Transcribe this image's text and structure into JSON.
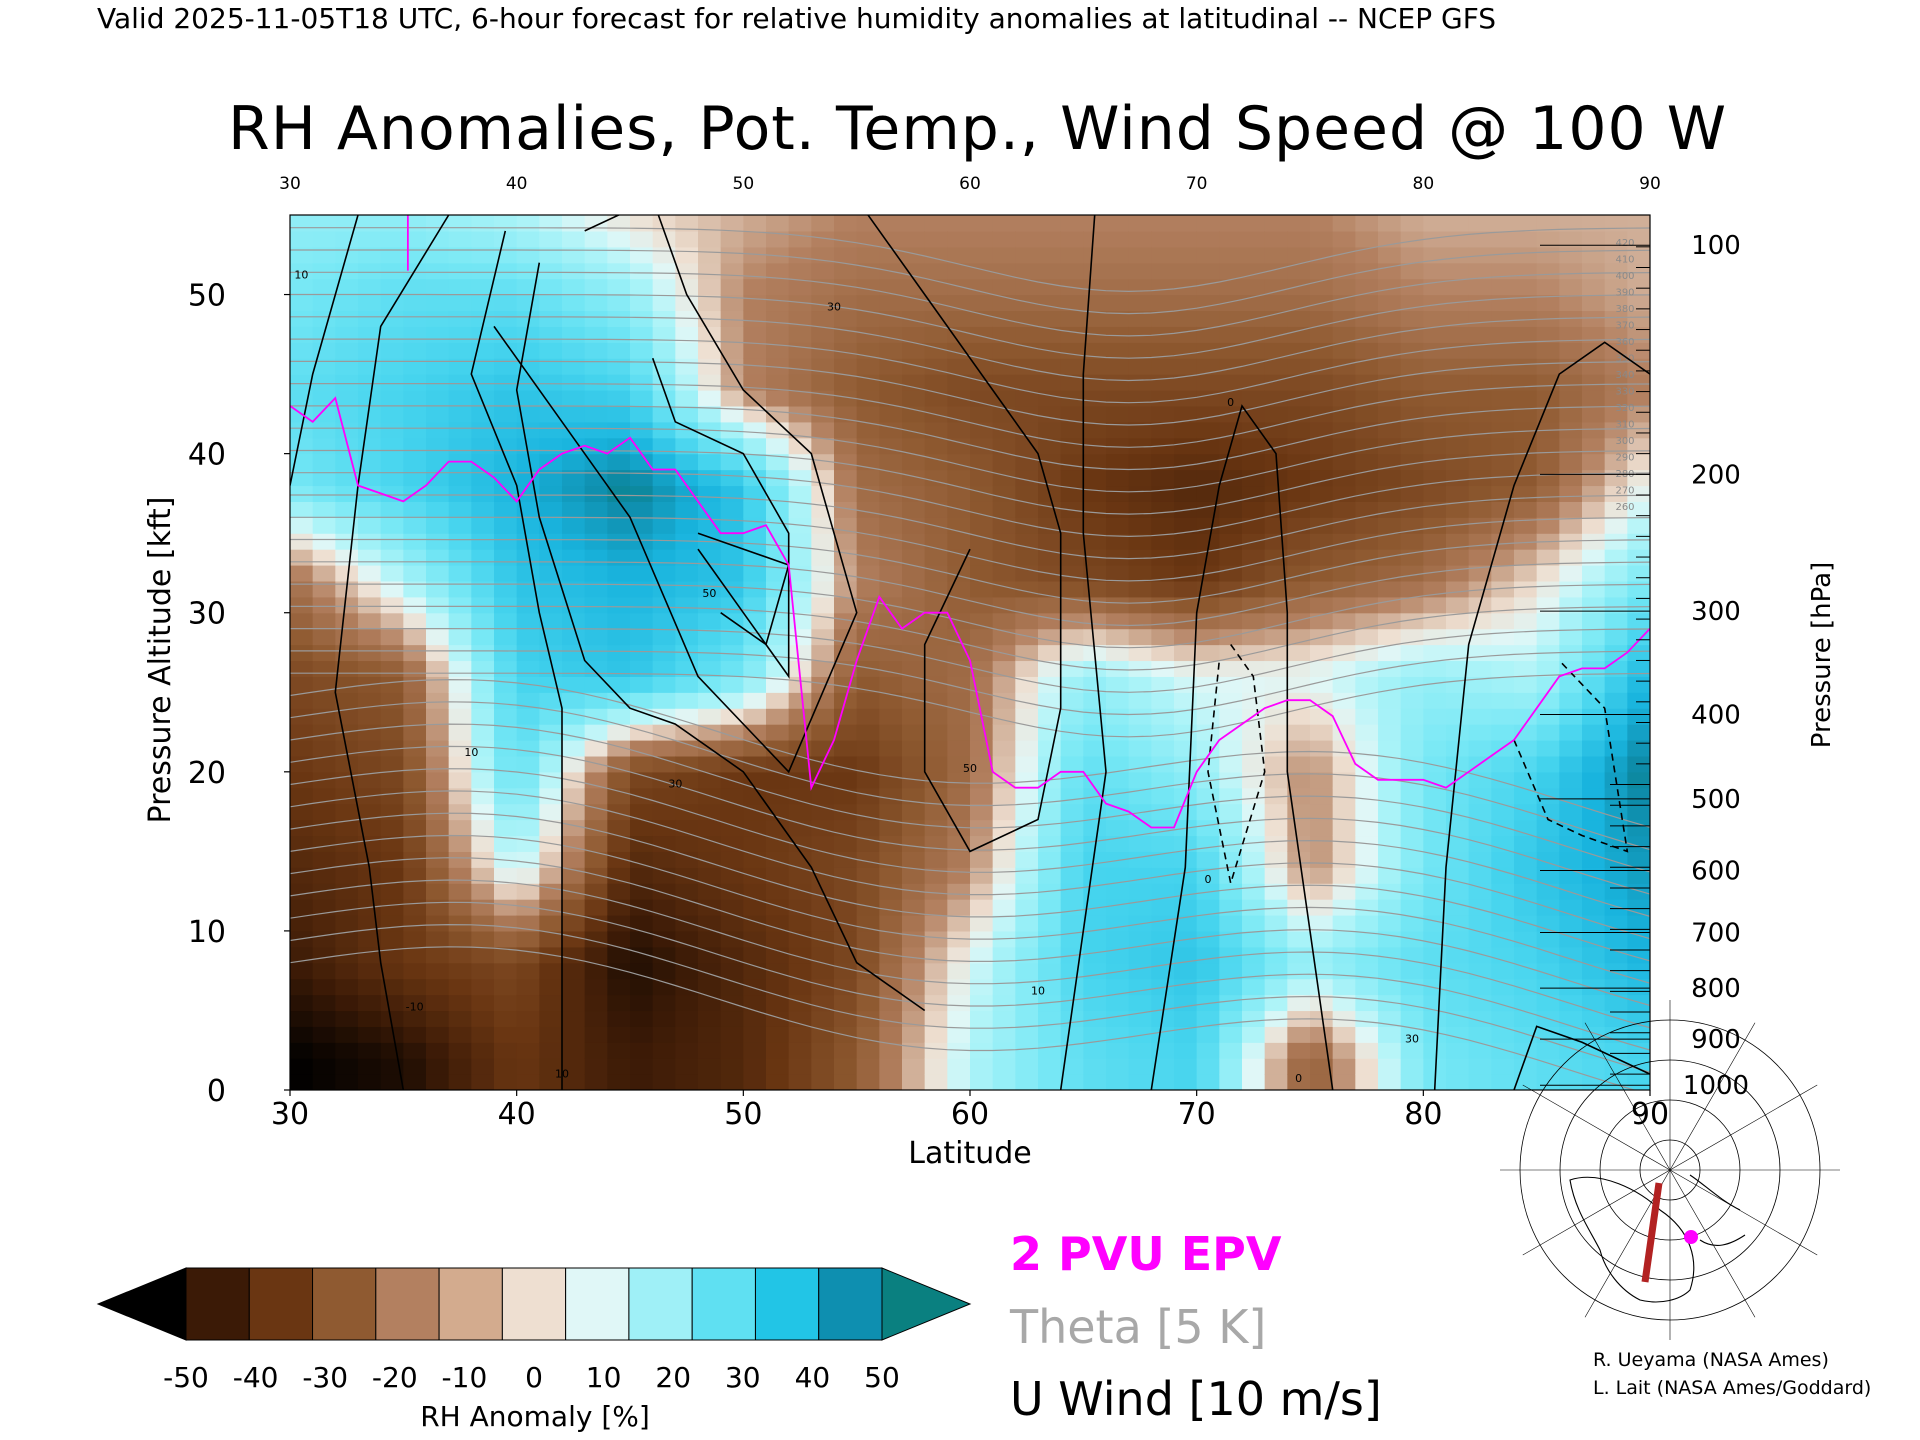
{
  "header": {
    "valid_line": "Valid 2025-11-05T18 UTC, 6-hour forecast for relative humidity anomalies at latitudinal -- NCEP GFS"
  },
  "chart_data": {
    "type": "heatmap",
    "title": "RH Anomalies, Pot. Temp., Wind Speed @ 100 W",
    "xlabel": "Latitude",
    "ylabel_left": "Pressure Altitude [kft]",
    "ylabel_right": "Pressure [hPa]",
    "xlim": [
      30,
      90
    ],
    "ylim_kft": [
      0,
      55
    ],
    "x_ticks": [
      30,
      40,
      50,
      60,
      70,
      80,
      90
    ],
    "x_tick_labels": [
      "30",
      "40",
      "50",
      "60",
      "70",
      "80",
      "90"
    ],
    "y_ticks": [
      0,
      10,
      20,
      30,
      40,
      50
    ],
    "y_tick_labels": [
      "0",
      "10",
      "20",
      "30",
      "40",
      "50"
    ],
    "pressure_ticks": [
      {
        "hpa": 100,
        "kft": 53.1,
        "label": "100"
      },
      {
        "hpa": 200,
        "kft": 38.7,
        "label": "200"
      },
      {
        "hpa": 300,
        "kft": 30.1,
        "label": "300"
      },
      {
        "hpa": 400,
        "kft": 23.6,
        "label": "400"
      },
      {
        "hpa": 500,
        "kft": 18.3,
        "label": "500"
      },
      {
        "hpa": 600,
        "kft": 13.8,
        "label": "600"
      },
      {
        "hpa": 700,
        "kft": 9.9,
        "label": "700"
      },
      {
        "hpa": 800,
        "kft": 6.4,
        "label": "800"
      },
      {
        "hpa": 900,
        "kft": 3.2,
        "label": "900"
      },
      {
        "hpa": 1000,
        "kft": 0.3,
        "label": "1000"
      }
    ],
    "rh_anomaly_field": {
      "lat": [
        30,
        35,
        40,
        45,
        50,
        55,
        60,
        65,
        70,
        75,
        80,
        85,
        90
      ],
      "kft": [
        2,
        8,
        14,
        20,
        26,
        32,
        38,
        44,
        50,
        55
      ],
      "values": [
        [
          -50,
          -45,
          -30,
          -40,
          -35,
          -20,
          10,
          25,
          30,
          -20,
          20,
          25,
          30
        ],
        [
          -40,
          -30,
          -25,
          -45,
          -35,
          -25,
          5,
          30,
          35,
          15,
          25,
          30,
          40
        ],
        [
          -35,
          -30,
          10,
          -35,
          -30,
          -25,
          -10,
          30,
          30,
          -10,
          20,
          35,
          45
        ],
        [
          -30,
          -25,
          25,
          -25,
          -30,
          -30,
          -15,
          25,
          15,
          -10,
          20,
          30,
          50
        ],
        [
          -25,
          -20,
          30,
          35,
          20,
          -20,
          -15,
          15,
          5,
          5,
          15,
          10,
          40
        ],
        [
          -15,
          10,
          35,
          40,
          35,
          -10,
          -20,
          -25,
          -30,
          -20,
          -15,
          0,
          20
        ],
        [
          20,
          30,
          40,
          50,
          35,
          -15,
          -20,
          -30,
          -35,
          -30,
          -25,
          -20,
          5
        ],
        [
          25,
          30,
          35,
          30,
          -10,
          -20,
          -25,
          -25,
          -25,
          -25,
          -20,
          -20,
          -10
        ],
        [
          20,
          25,
          25,
          15,
          -10,
          -15,
          -15,
          -15,
          -15,
          -15,
          -10,
          -10,
          -5
        ],
        [
          15,
          15,
          10,
          0,
          -5,
          -10,
          -10,
          -10,
          -10,
          -10,
          -5,
          -5,
          -5
        ]
      ]
    },
    "u_wind_contour_labels": [
      "10",
      "30",
      "50",
      "0",
      "10",
      "30",
      "10",
      "0",
      "0",
      "-10",
      "10",
      "30",
      "50"
    ],
    "theta_contour_labels": [
      "420",
      "410",
      "400",
      "390",
      "380",
      "370",
      "360",
      "350",
      "340",
      "330",
      "320",
      "310",
      "300",
      "290",
      "280",
      "270",
      "260"
    ],
    "epv_2pvu_line": {
      "lat": [
        30,
        31,
        32,
        33,
        34,
        35,
        36,
        37,
        38,
        39,
        40,
        41,
        42,
        43,
        44,
        45,
        46,
        47,
        48,
        49,
        50,
        51,
        52,
        53,
        54,
        55,
        56,
        57,
        58,
        59,
        60,
        61,
        62,
        63,
        64,
        65,
        66,
        67,
        68,
        69,
        70,
        71,
        72,
        73,
        74,
        75,
        76,
        77,
        78,
        79,
        80,
        81,
        82,
        83,
        84,
        85,
        86,
        87,
        88,
        89,
        90
      ],
      "kft": [
        43,
        42,
        43.5,
        38,
        37.5,
        37,
        38,
        39.5,
        39.5,
        38.5,
        37,
        39,
        40,
        40.5,
        40,
        41,
        39,
        39,
        37,
        35,
        35,
        35.5,
        33,
        19,
        22,
        27,
        31,
        29,
        30,
        30,
        27,
        20,
        19,
        19,
        20,
        20,
        18,
        17.5,
        16.5,
        16.5,
        20,
        22,
        23,
        24,
        24.5,
        24.5,
        23.5,
        20.5,
        19.5,
        19.5,
        19.5,
        19,
        20,
        21,
        22,
        24,
        26,
        26.5,
        26.5,
        27.5,
        29
      ]
    },
    "colorbar": {
      "label": "RH Anomaly [%]",
      "ticks": [
        "-50",
        "-40",
        "-30",
        "-20",
        "-10",
        "0",
        "10",
        "20",
        "30",
        "40",
        "50"
      ],
      "colors": [
        "#000000",
        "#3b1a06",
        "#6a3612",
        "#8f5a31",
        "#b38060",
        "#d3ab8e",
        "#eedfd1",
        "#e0f7f7",
        "#9ff0f7",
        "#5fe0f2",
        "#22c5e6",
        "#0e8fb0",
        "#0a8080"
      ]
    },
    "legend": [
      {
        "label": "2 PVU EPV",
        "color": "#ff00ff"
      },
      {
        "label": "Theta [5 K]",
        "color": "#a8a8a8"
      },
      {
        "label": "U Wind [10 m/s]",
        "color": "#000000"
      }
    ]
  },
  "credits": {
    "line1": "R. Ueyama (NASA Ames)",
    "line2": "L. Lait (NASA Ames/Goddard)"
  }
}
